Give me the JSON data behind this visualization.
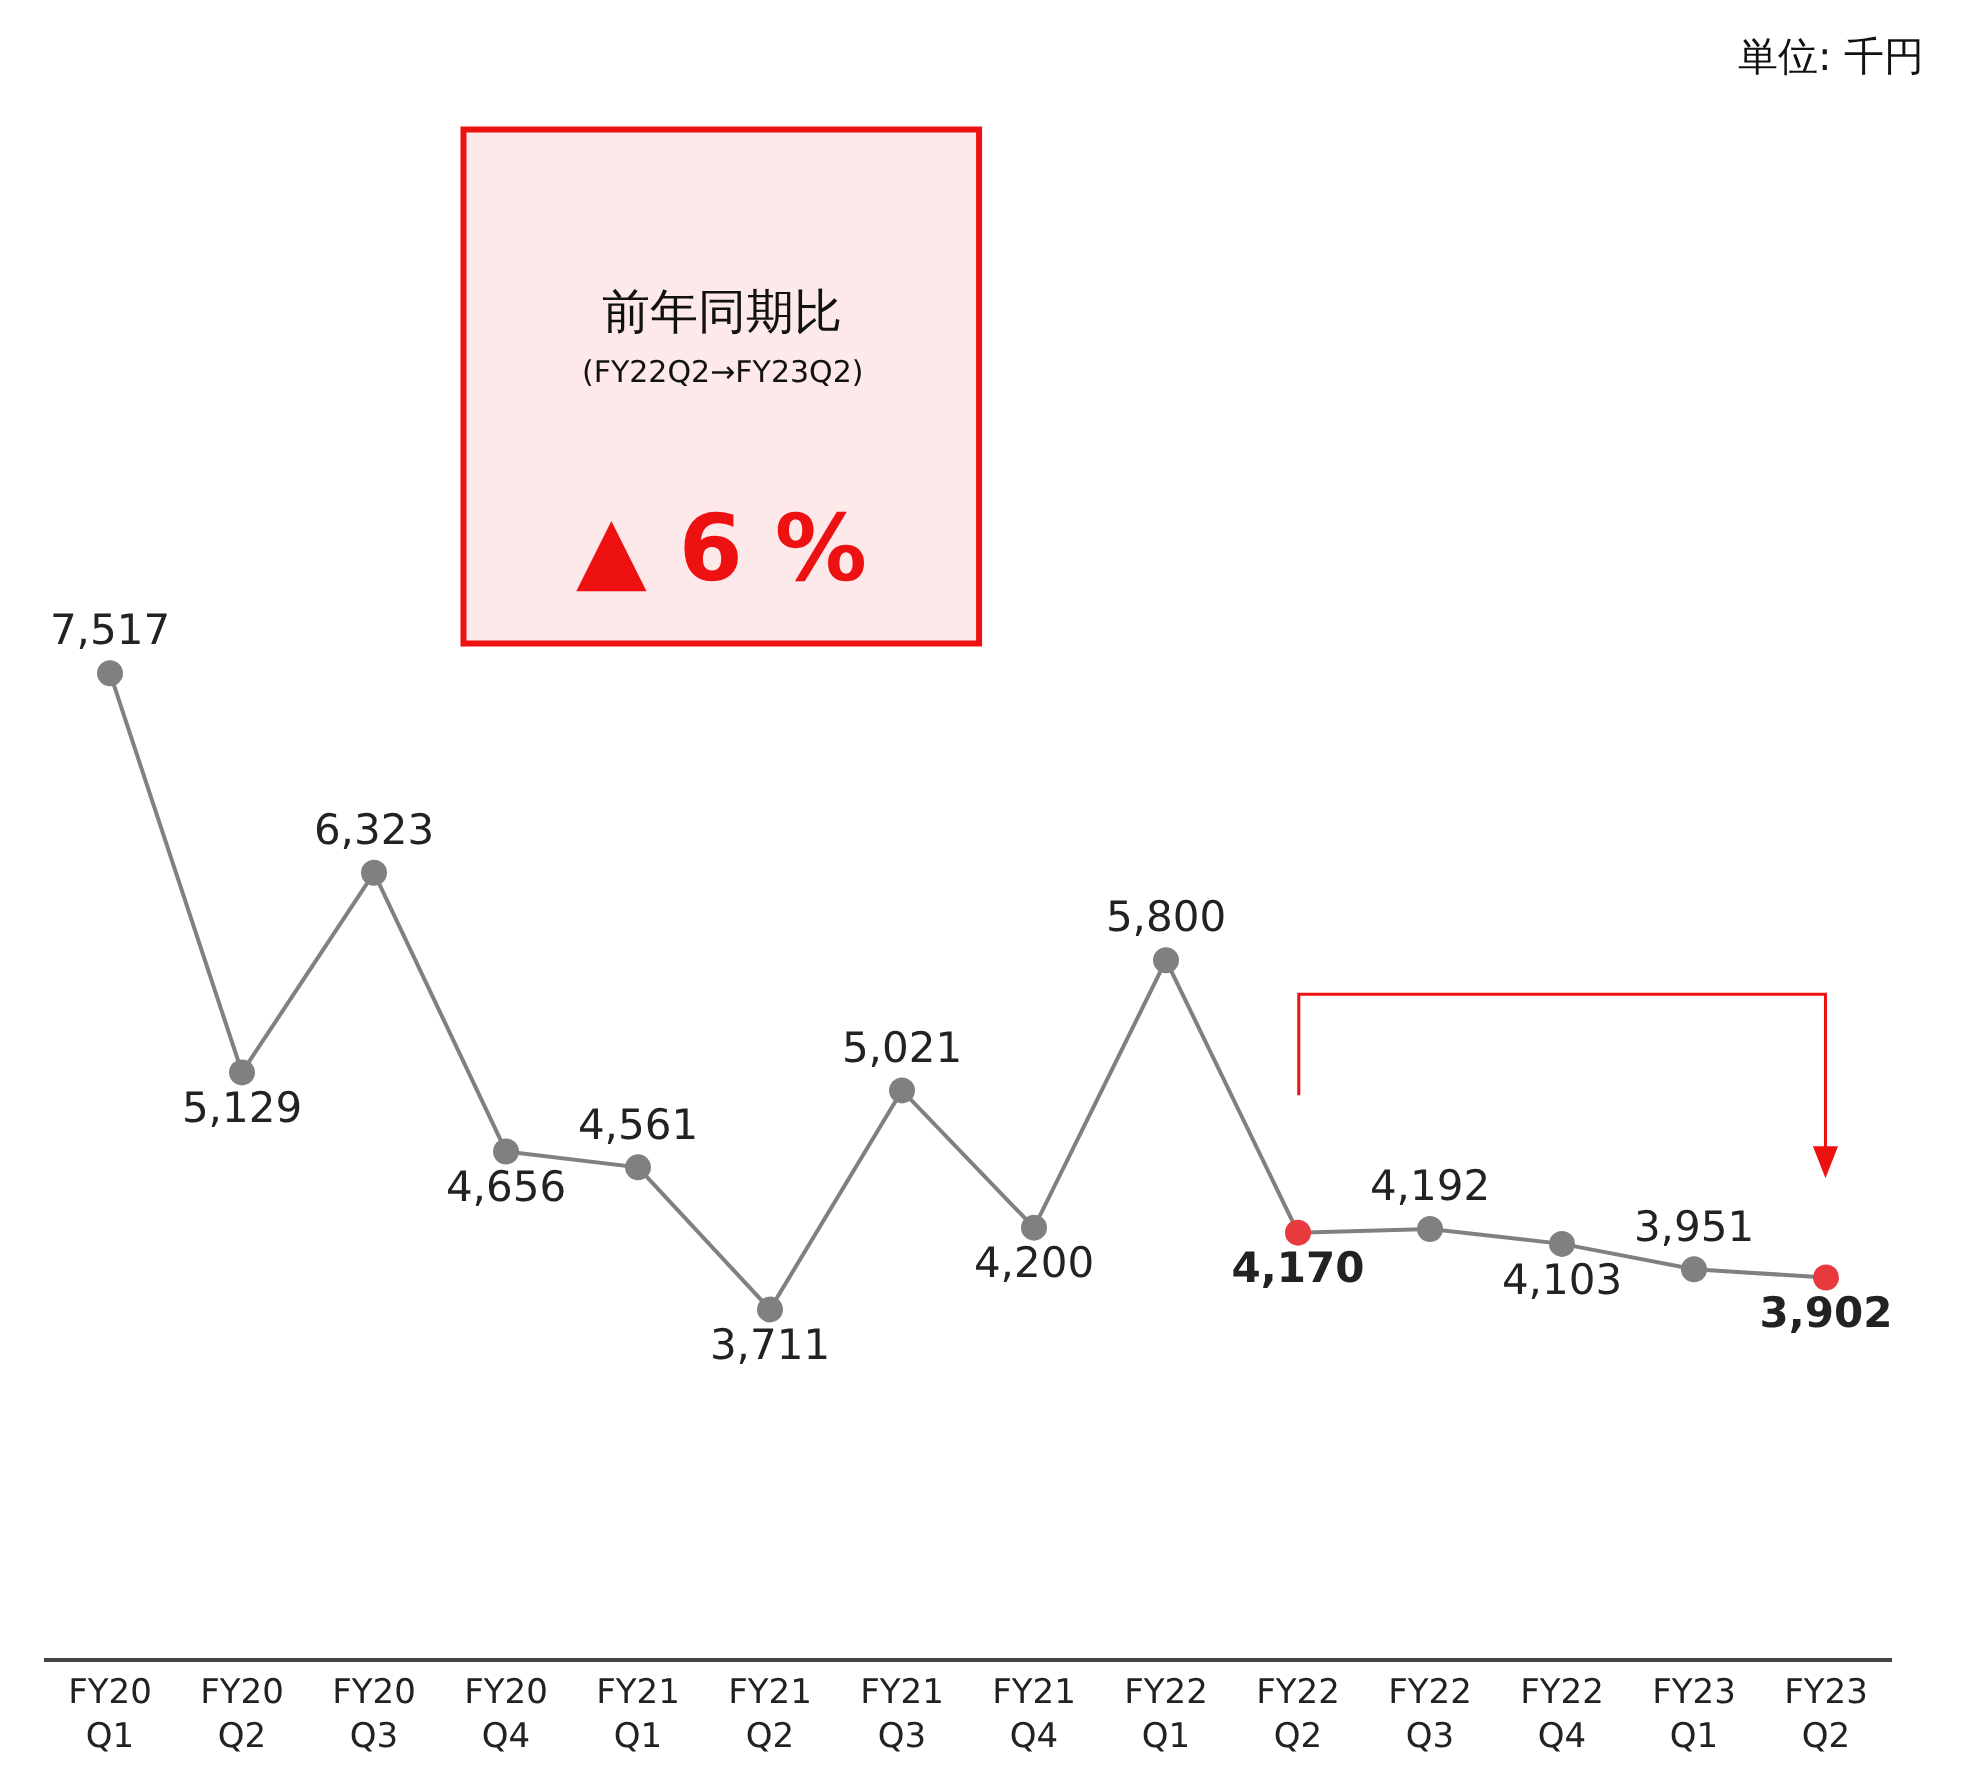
{
  "chart_data": {
    "type": "line",
    "categories": [
      "FY20 Q1",
      "FY20 Q2",
      "FY20 Q3",
      "FY20 Q4",
      "FY21 Q1",
      "FY21 Q2",
      "FY21 Q3",
      "FY21 Q4",
      "FY22 Q1",
      "FY22 Q2",
      "FY22 Q3",
      "FY22 Q4",
      "FY23 Q1",
      "FY23 Q2"
    ],
    "series": [
      {
        "color": "#808080",
        "values": [
          7517,
          5129,
          6323,
          4656,
          4561,
          3711,
          5021,
          4200,
          5800,
          4170,
          4192,
          4103,
          3951,
          3902
        ],
        "value_labels": [
          "7,517",
          "5,129",
          "6,323",
          "4,656",
          "4,561",
          "3,711",
          "5,021",
          "4,200",
          "5,800",
          "4,170",
          "4,192",
          "4,103",
          "3,951",
          "3,902"
        ],
        "colors": [
          "#808080",
          "#808080",
          "#808080",
          "#808080",
          "#808080",
          "#808080",
          "#808080",
          "#808080",
          "#808080",
          "#e8393f",
          "#808080",
          "#808080",
          "#808080",
          "#e8393f"
        ]
      }
    ],
    "marker": "circle",
    "line_style": "solid",
    "grid": false,
    "tick_labels": "x",
    "annotations": [
      "単位: 千円",
      "前年同期比",
      "(FY22Q2→FY23Q2)",
      "▲ 6 %"
    ]
  }
}
